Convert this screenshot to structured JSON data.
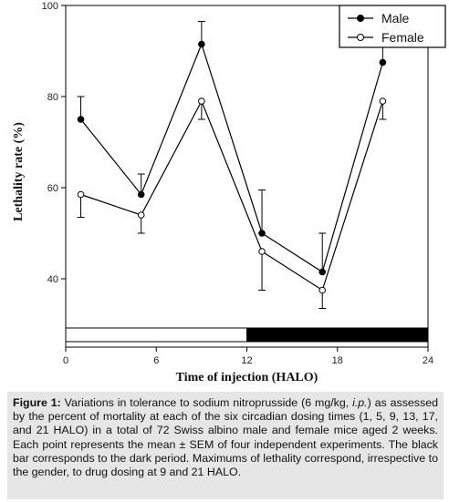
{
  "chart_data": {
    "type": "line",
    "title": "",
    "xlabel": "Time of injection (HALO)",
    "ylabel": "Lethality rate (%)",
    "xlim": [
      0,
      24
    ],
    "ylim": [
      25,
      100
    ],
    "x_ticks": [
      0,
      6,
      12,
      18,
      24
    ],
    "y_ticks": [
      40,
      60,
      80,
      100
    ],
    "legend_placement": "top-right",
    "grid": false,
    "x": [
      1,
      5,
      9,
      13,
      17,
      21
    ],
    "series": [
      {
        "name": "Male",
        "marker": "filled-circle",
        "values": [
          75,
          58.5,
          91.5,
          50,
          41.5,
          87.5
        ],
        "errors": [
          5,
          4.5,
          5,
          9.5,
          8.5,
          4
        ]
      },
      {
        "name": "Female",
        "marker": "open-circle",
        "values": [
          58.5,
          54,
          79,
          46,
          37.5,
          79
        ],
        "errors": [
          5,
          4,
          4,
          8.5,
          4,
          4
        ]
      }
    ],
    "light_dark_bar": [
      {
        "phase": "light",
        "from": 0,
        "to": 12,
        "color": "#ffffff"
      },
      {
        "phase": "dark",
        "from": 12,
        "to": 24,
        "color": "#000000"
      }
    ]
  },
  "caption": {
    "label": "Figure 1:",
    "part1": " Variations in tolerance to sodium nitroprusside (6 mg/kg, ",
    "italic": "i.p.",
    "part2": ") as assessed by the percent of mortality at each of the six circadian dosing times (1, 5, 9, 13, 17, and 21 HALO) in a total of 72 Swiss albino male and female mice aged 2 weeks. Each point represents the mean ± SEM of four independent experiments. The black bar corresponds to the dark period. Maximums of lethality correspond, irrespective to the gender, to drug dosing at 9 and 21 HALO."
  }
}
